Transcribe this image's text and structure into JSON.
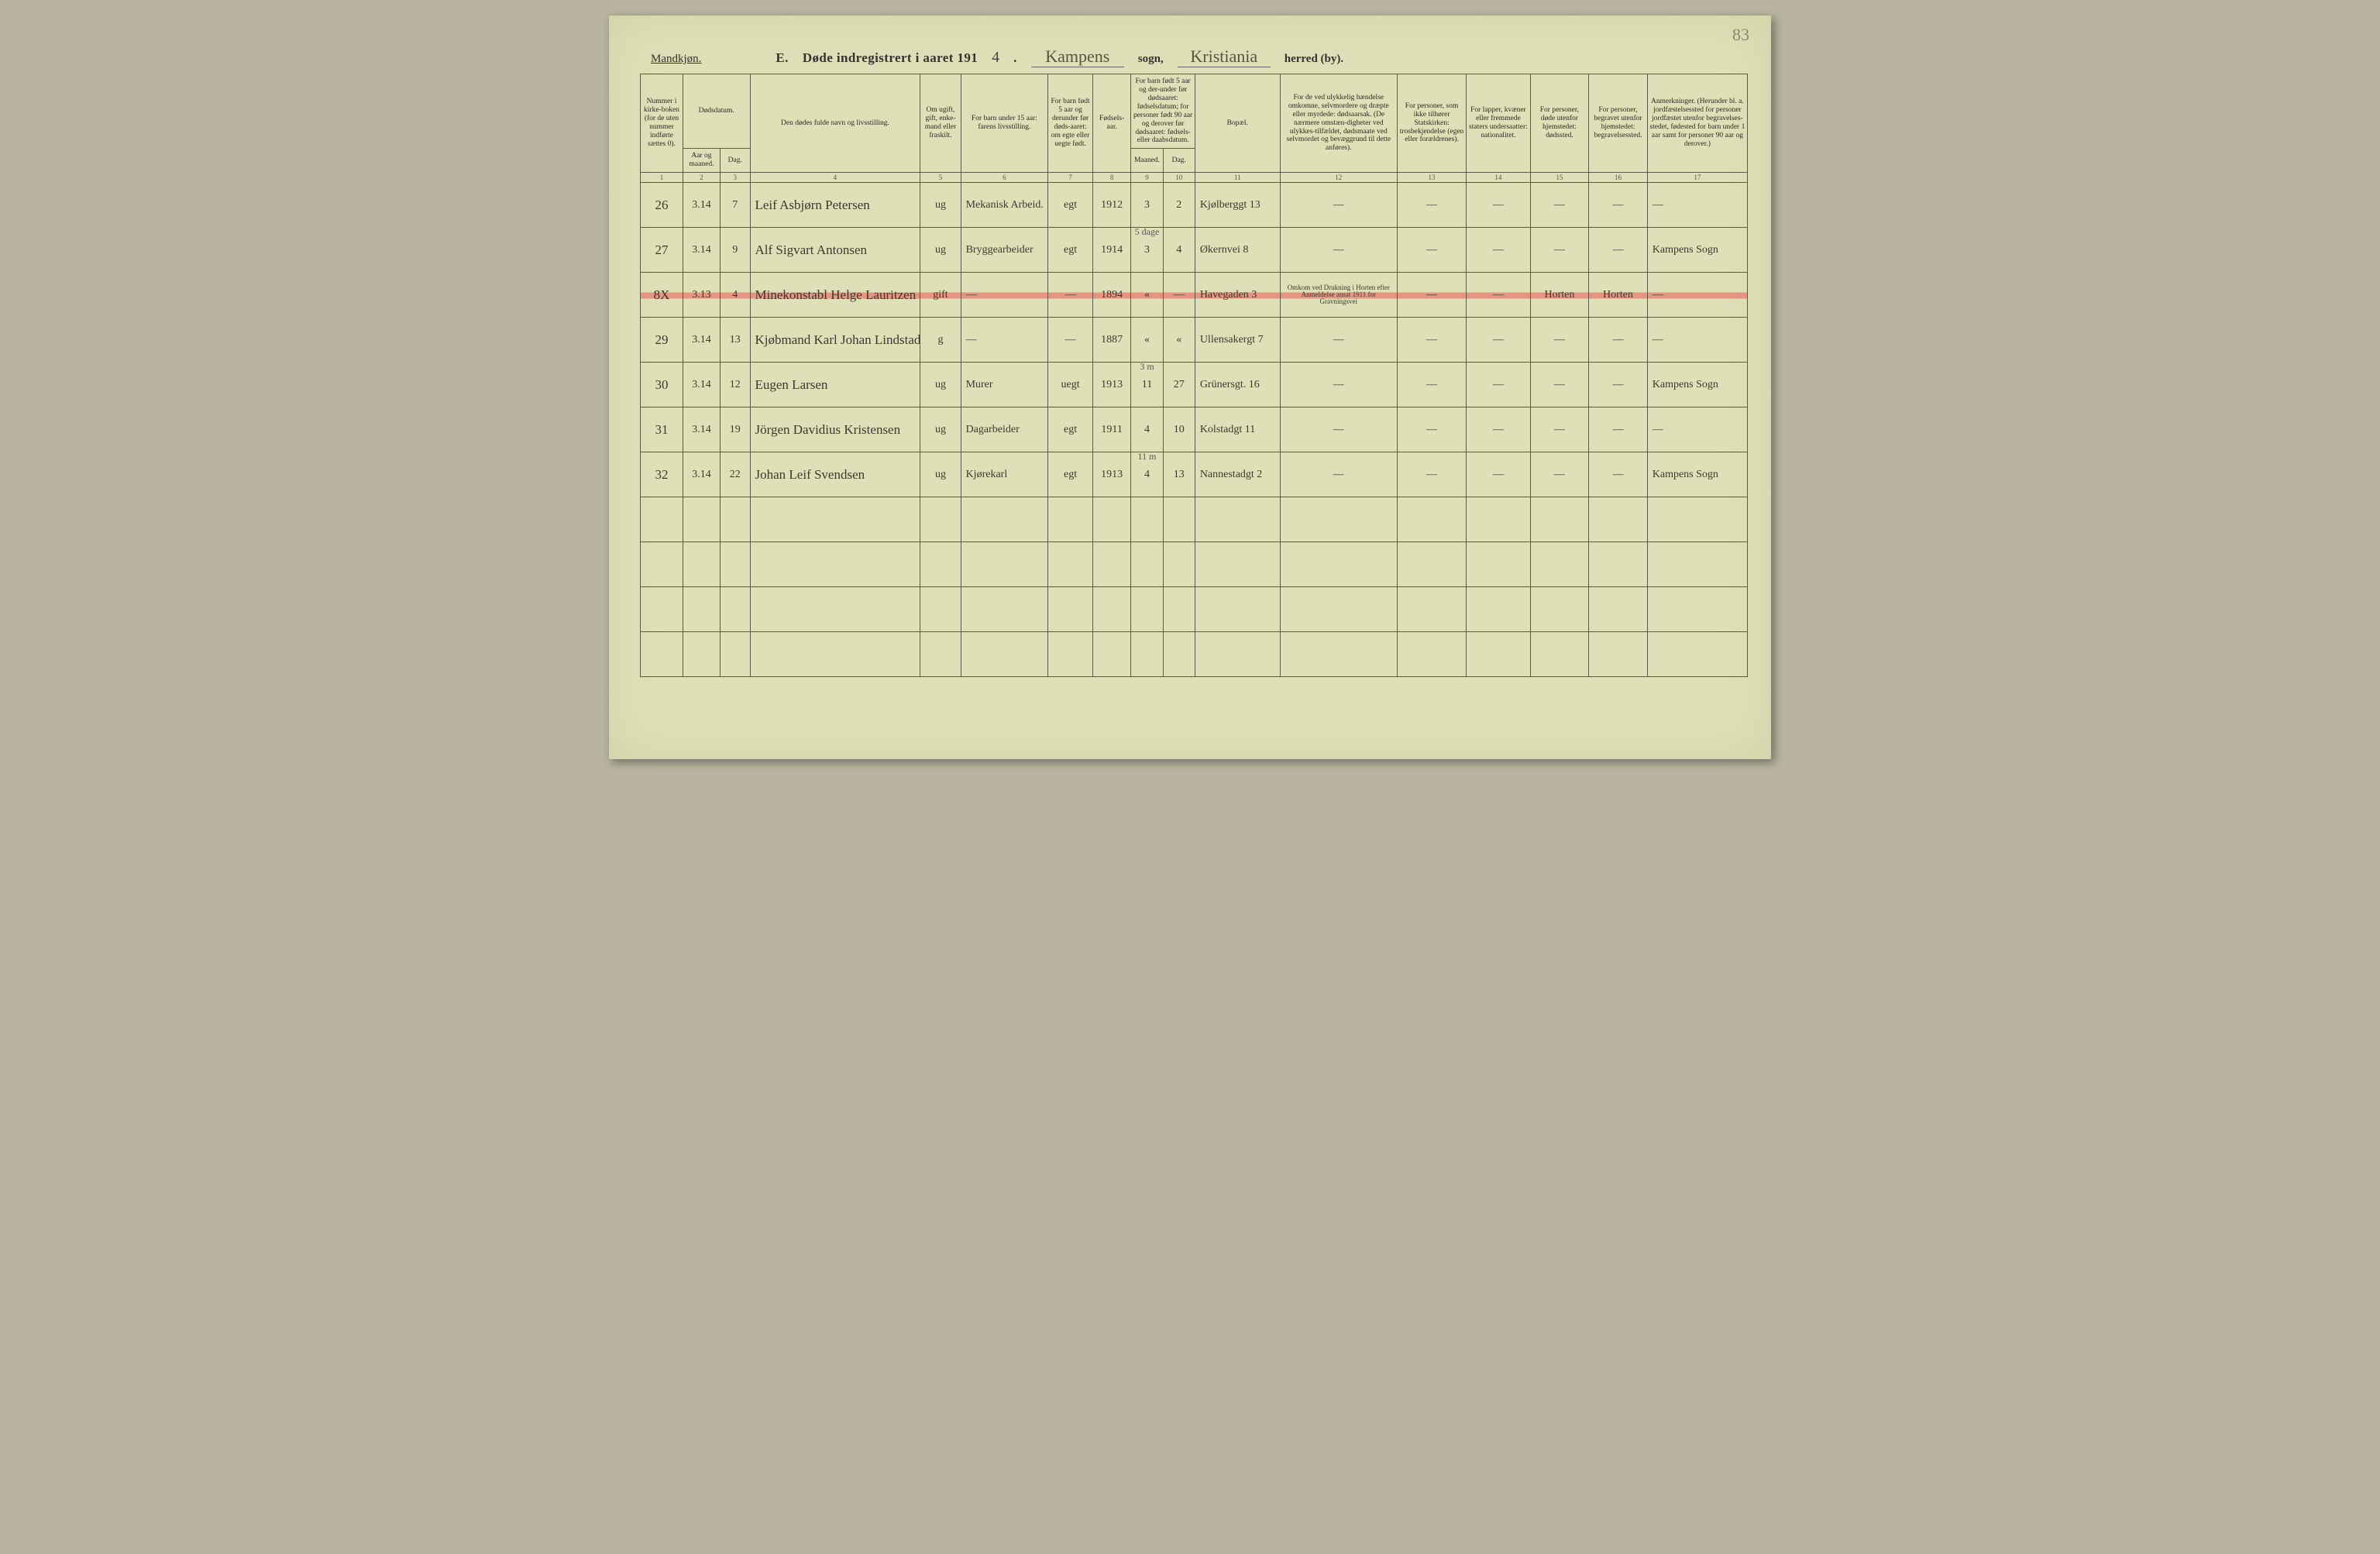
{
  "page_number_corner": "83",
  "header": {
    "gender_label": "Mandkjøn.",
    "title_prefix": "E.",
    "title_mid": "Døde indregistrert i aaret 191",
    "year_last": "4",
    "parish_script": "Kampens",
    "sogn_label": "sogn,",
    "district_script": "Kristiania",
    "herred_label": "herred (by)."
  },
  "columns": {
    "c1": "Nummer i kirke-boken (for de uten nummer indførte sættes 0).",
    "c2a": "Dødsdatum.",
    "c2_sub1": "Aar og maaned.",
    "c2_sub2": "Dag.",
    "c4": "Den dødes fulde navn og livsstilling.",
    "c5": "Om ugift, gift, enke-mand eller fraskilt.",
    "c6": "For barn under 15 aar: farens livsstilling.",
    "c7": "For barn født 5 aar og derunder før døds-aaret: om egte eller uegte født.",
    "c8": "Fødsels-aar.",
    "c9_10": "For barn født 5 aar og der-under før dødsaaret: fødselsdatum; for personer født 90 aar og derover før dødsaaret: fødsels- eller daabsdatum.",
    "c9": "Maaned.",
    "c10": "Dag.",
    "c11": "Bopæl.",
    "c12": "For de ved ulykkelig hændelse omkomne, selvmordere og dræpte eller myrdede: dødsaarsak. (De nærmere omstæn-digheter ved ulykkes-tilfældet, dødsmaate ved selvmordet og bevæggrund til dette anføres).",
    "c13": "For personer, som ikke tilhører Statskirken: trosbekjendelse (egen eller forældrenes).",
    "c14": "For lapper, kvæner eller fremmede staters undersaatter: nationalitet.",
    "c15": "For personer, døde utenfor hjemstedet: dødssted.",
    "c16": "For personer, begravet utenfor hjemstedet: begravelsessted.",
    "c17": "Anmerkninger. (Herunder bl. a. jordfæstelsessted for personer jordfæstet utenfor begravelses-stedet, fødested for barn under 1 aar samt for personer 90 aar og derover.)"
  },
  "colnums": [
    "1",
    "2",
    "3",
    "4",
    "5",
    "6",
    "7",
    "8",
    "9",
    "10",
    "11",
    "12",
    "13",
    "14",
    "15",
    "16",
    "17"
  ],
  "rows": [
    {
      "tick": "×",
      "num": "26",
      "ym": "3.14",
      "day": "7",
      "name": "Leif Asbjørn Petersen",
      "civil": "ug",
      "father": "Mekanisk Arbeid.",
      "legit": "egt",
      "birth": "1912",
      "bm": "3",
      "bd": "2",
      "abode": "Kjølberggt 13",
      "c12": "—",
      "c13": "—",
      "c14": "—",
      "c15": "—",
      "c16": "—",
      "c17": "—"
    },
    {
      "tick": "×",
      "num": "27",
      "ym": "3.14",
      "day": "9",
      "name": "Alf Sigvart Antonsen",
      "civil": "ug",
      "father": "Bryggearbeider",
      "legit": "egt",
      "birth": "1914",
      "bm_above": "5 dage",
      "bm": "3",
      "bd": "4",
      "abode": "Økernvei 8",
      "c12": "—",
      "c13": "—",
      "c14": "—",
      "c15": "—",
      "c16": "—",
      "c17": "Kampens Sogn"
    },
    {
      "tick": "O",
      "strike": true,
      "num": "8X",
      "ym": "3.13",
      "day": "4",
      "name": "Minekonstabl Helge Lauritzen",
      "civil": "gift",
      "father": "—",
      "legit": "—",
      "birth": "1894",
      "bm": "«",
      "bd": "—",
      "abode": "Havegaden 3",
      "c12": "Omkom ved Drukning i Horten efter Anmeldelse ansat 1911 for Gravningsvei",
      "c13": "—",
      "c14": "—",
      "c15": "Horten",
      "c16": "Horten",
      "c17": "—"
    },
    {
      "tick": "×",
      "num": "29",
      "ym": "3.14",
      "day": "13",
      "name": "Kjøbmand Karl Johan Lindstad",
      "civil": "g",
      "father": "—",
      "legit": "—",
      "birth": "1887",
      "bm": "«",
      "bd": "«",
      "abode": "Ullensakergt 7",
      "c12": "—",
      "c13": "—",
      "c14": "—",
      "c15": "—",
      "c16": "—",
      "c17": "—"
    },
    {
      "tick": "×",
      "num": "30",
      "ym": "3.14",
      "day": "12",
      "name": "Eugen Larsen",
      "civil": "ug",
      "father": "Murer",
      "legit": "uegt",
      "birth": "1913",
      "bm_above": "3 m",
      "bm": "11",
      "bd": "27",
      "abode": "Grünersgt. 16",
      "c12": "—",
      "c13": "—",
      "c14": "—",
      "c15": "—",
      "c16": "—",
      "c17": "Kampens Sogn"
    },
    {
      "tick": "×",
      "num": "31",
      "ym": "3.14",
      "day": "19",
      "name": "Jörgen Davidius Kristensen",
      "civil": "ug",
      "father": "Dagarbeider",
      "legit": "egt",
      "birth": "1911",
      "bm": "4",
      "bd": "10",
      "abode": "Kolstadgt 11",
      "c12": "—",
      "c13": "—",
      "c14": "—",
      "c15": "—",
      "c16": "—",
      "c17": "—"
    },
    {
      "tick": "×",
      "num": "32",
      "ym": "3.14",
      "day": "22",
      "name": "Johan Leif Svendsen",
      "civil": "ug",
      "father": "Kjørekarl",
      "legit": "egt",
      "birth": "1913",
      "bm_above": "11 m",
      "bm": "4",
      "bd": "13",
      "abode": "Nannestadgt 2",
      "c12": "—",
      "c13": "—",
      "c14": "—",
      "c15": "—",
      "c16": "—",
      "c17": "Kampens Sogn"
    }
  ],
  "empty_rows": 4,
  "col_widths_pct": [
    4.0,
    3.5,
    2.8,
    16.0,
    3.8,
    8.2,
    4.2,
    3.6,
    3.0,
    3.0,
    8.0,
    11.0,
    6.5,
    6.0,
    5.5,
    5.5,
    9.4
  ],
  "colors": {
    "page_bg": "#dfe0b8",
    "body_bg": "#b8b4a0",
    "line": "#5a5a48",
    "ink": "#3a3a30",
    "strike": "rgba(230,110,100,0.65)"
  }
}
